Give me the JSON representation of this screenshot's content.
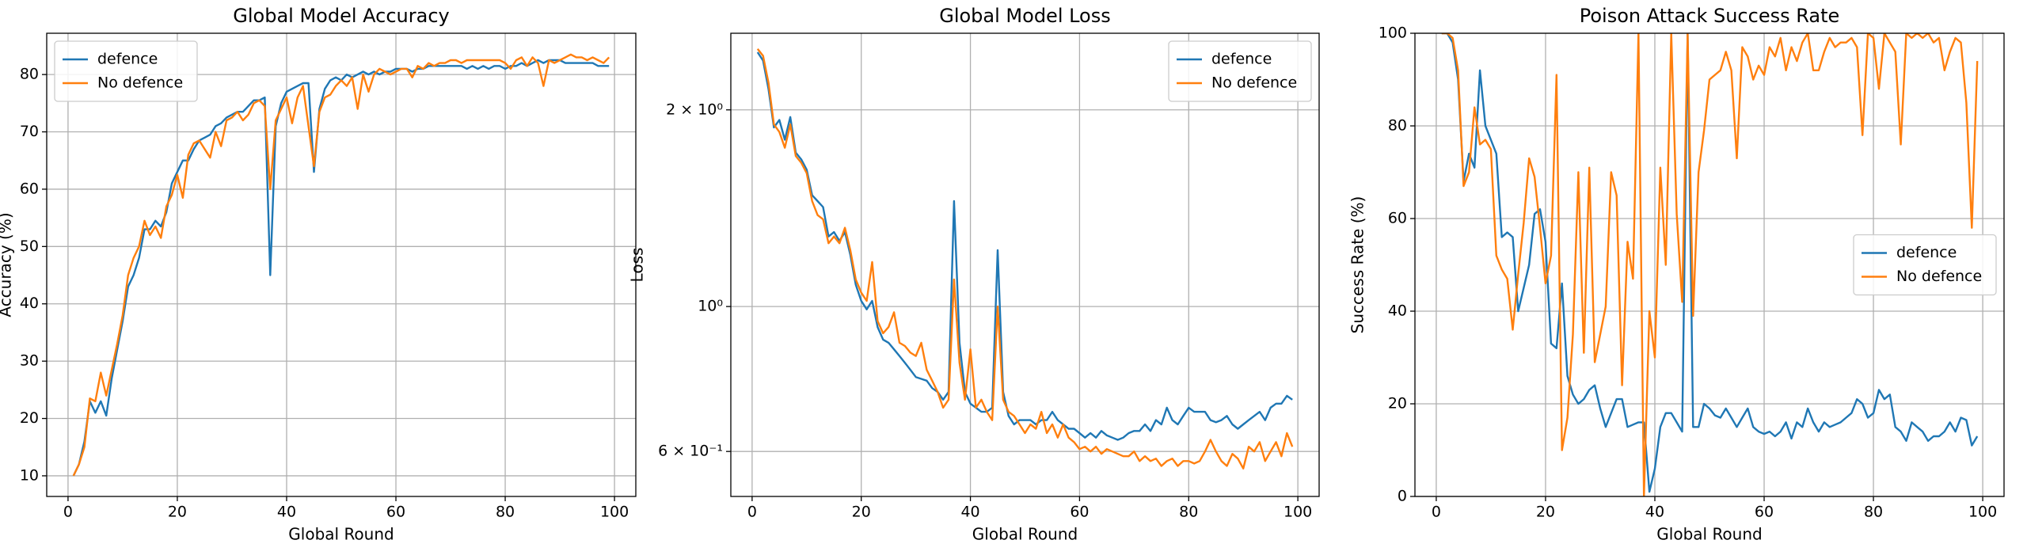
{
  "chart_data": [
    {
      "type": "line",
      "title": "Global Model Accuracy",
      "xlabel": "Global Round",
      "ylabel": "Accuracy (%)",
      "legend": "upper left",
      "grid": true,
      "xlim": [
        -3.9,
        103.9
      ],
      "xticks": [
        0,
        20,
        40,
        60,
        80,
        100
      ],
      "ylim": [
        6.4,
        87.2
      ],
      "yticks": [
        10,
        20,
        30,
        40,
        50,
        60,
        70,
        80
      ],
      "x": [
        1,
        2,
        3,
        4,
        5,
        6,
        7,
        8,
        9,
        10,
        11,
        12,
        13,
        14,
        15,
        16,
        17,
        18,
        19,
        20,
        21,
        22,
        23,
        24,
        25,
        26,
        27,
        28,
        29,
        30,
        31,
        32,
        33,
        34,
        35,
        36,
        37,
        38,
        39,
        40,
        41,
        42,
        43,
        44,
        45,
        46,
        47,
        48,
        49,
        50,
        51,
        52,
        53,
        54,
        55,
        56,
        57,
        58,
        59,
        60,
        61,
        62,
        63,
        64,
        65,
        66,
        67,
        68,
        69,
        70,
        71,
        72,
        73,
        74,
        75,
        76,
        77,
        78,
        79,
        80,
        81,
        82,
        83,
        84,
        85,
        86,
        87,
        88,
        89,
        90,
        91,
        92,
        93,
        94,
        95,
        96,
        97,
        98,
        99
      ],
      "series": [
        {
          "name": "defence",
          "color": "#1f77b4",
          "values": [
            10,
            12,
            16,
            23,
            21,
            23,
            20.5,
            27,
            32,
            37,
            43,
            45,
            48,
            53,
            53,
            54.5,
            53.5,
            56,
            61,
            63,
            65,
            65,
            67,
            68.5,
            69,
            69.5,
            71,
            71.5,
            72.5,
            73,
            73.5,
            73.5,
            74.5,
            75.5,
            75.5,
            76,
            45,
            71,
            75,
            77,
            77.5,
            78,
            78.5,
            78.5,
            63,
            74,
            77.5,
            79,
            79.5,
            79,
            80,
            79.5,
            80,
            80.5,
            80,
            80.5,
            80,
            80.5,
            80.5,
            81,
            81,
            81,
            80.5,
            81,
            81,
            81.5,
            81.5,
            81.5,
            81.5,
            81.5,
            81.5,
            81.5,
            81,
            81.5,
            81,
            81.5,
            81,
            81.5,
            81.5,
            81,
            81.5,
            81.5,
            82,
            81.5,
            82,
            82.5,
            82,
            82.5,
            82.5,
            82.5,
            82,
            82,
            82,
            82,
            82,
            82,
            81.5,
            81.5,
            81.5
          ]
        },
        {
          "name": "No defence",
          "color": "#ff7f0e",
          "values": [
            10,
            12,
            15,
            23.5,
            23,
            28,
            24,
            28.5,
            33,
            38,
            45,
            48,
            50,
            54.5,
            52,
            53.5,
            51.5,
            57,
            59,
            62.5,
            58.5,
            66,
            68,
            68.5,
            67,
            65.5,
            70,
            67.5,
            72,
            72.5,
            73.5,
            72,
            73,
            75,
            75.5,
            74.5,
            60,
            72,
            74,
            76,
            71.5,
            76,
            78,
            71,
            64,
            73.5,
            76,
            76.5,
            78,
            79,
            78,
            79.5,
            74,
            80,
            77,
            80,
            81,
            80.5,
            80,
            80.5,
            81,
            81,
            79.5,
            81.5,
            81,
            82,
            81.5,
            82,
            82,
            82.5,
            82.5,
            82,
            82.5,
            82.5,
            82.5,
            82.5,
            82.5,
            82.5,
            82.5,
            82,
            81,
            82.5,
            83,
            81.5,
            83,
            82,
            78,
            82.5,
            82,
            82.5,
            83,
            83.5,
            83,
            83,
            82.5,
            83,
            82.5,
            82,
            83
          ]
        }
      ]
    },
    {
      "type": "line",
      "title": "Global Model Loss",
      "xlabel": "Global Round",
      "ylabel": "Loss",
      "legend": "upper right",
      "grid": true,
      "yscale": "log",
      "xlim": [
        -3.9,
        103.9
      ],
      "xticks": [
        0,
        20,
        40,
        60,
        80,
        100
      ],
      "ylim": [
        0.512,
        2.62
      ],
      "yticks": [
        {
          "value": 0.6,
          "label": "6 × 10⁻¹"
        },
        {
          "value": 1,
          "label": "10⁰"
        },
        {
          "value": 2,
          "label": "2 × 10⁰"
        }
      ],
      "x": [
        1,
        2,
        3,
        4,
        5,
        6,
        7,
        8,
        9,
        10,
        11,
        12,
        13,
        14,
        15,
        16,
        17,
        18,
        19,
        20,
        21,
        22,
        23,
        24,
        25,
        26,
        27,
        28,
        29,
        30,
        31,
        32,
        33,
        34,
        35,
        36,
        37,
        38,
        39,
        40,
        41,
        42,
        43,
        44,
        45,
        46,
        47,
        48,
        49,
        50,
        51,
        52,
        53,
        54,
        55,
        56,
        57,
        58,
        59,
        60,
        61,
        62,
        63,
        64,
        65,
        66,
        67,
        68,
        69,
        70,
        71,
        72,
        73,
        74,
        75,
        76,
        77,
        78,
        79,
        80,
        81,
        82,
        83,
        84,
        85,
        86,
        87,
        88,
        89,
        90,
        91,
        92,
        93,
        94,
        95,
        96,
        97,
        98,
        99
      ],
      "series": [
        {
          "name": "defence",
          "color": "#1f77b4",
          "values": [
            2.45,
            2.38,
            2.15,
            1.88,
            1.93,
            1.8,
            1.95,
            1.72,
            1.68,
            1.62,
            1.48,
            1.45,
            1.42,
            1.28,
            1.3,
            1.26,
            1.3,
            1.2,
            1.08,
            1.02,
            0.99,
            1.02,
            0.93,
            0.89,
            0.88,
            0.86,
            0.84,
            0.82,
            0.8,
            0.78,
            0.775,
            0.77,
            0.75,
            0.74,
            0.72,
            0.74,
            1.45,
            0.88,
            0.74,
            0.71,
            0.7,
            0.69,
            0.69,
            0.7,
            1.22,
            0.74,
            0.68,
            0.66,
            0.67,
            0.67,
            0.67,
            0.66,
            0.67,
            0.67,
            0.69,
            0.67,
            0.66,
            0.65,
            0.65,
            0.64,
            0.63,
            0.64,
            0.63,
            0.645,
            0.635,
            0.63,
            0.625,
            0.63,
            0.64,
            0.645,
            0.645,
            0.66,
            0.645,
            0.67,
            0.66,
            0.7,
            0.67,
            0.66,
            0.68,
            0.7,
            0.69,
            0.69,
            0.69,
            0.67,
            0.665,
            0.67,
            0.68,
            0.66,
            0.65,
            0.66,
            0.67,
            0.68,
            0.69,
            0.67,
            0.7,
            0.71,
            0.71,
            0.73,
            0.72
          ]
        },
        {
          "name": "No defence",
          "color": "#ff7f0e",
          "values": [
            2.48,
            2.42,
            2.2,
            1.9,
            1.85,
            1.75,
            1.9,
            1.7,
            1.66,
            1.6,
            1.45,
            1.38,
            1.36,
            1.25,
            1.28,
            1.25,
            1.32,
            1.22,
            1.1,
            1.05,
            1.02,
            1.17,
            0.95,
            0.91,
            0.93,
            0.98,
            0.88,
            0.87,
            0.85,
            0.84,
            0.88,
            0.8,
            0.77,
            0.74,
            0.7,
            0.72,
            1.1,
            0.82,
            0.72,
            0.86,
            0.7,
            0.72,
            0.69,
            0.67,
            1.0,
            0.72,
            0.69,
            0.68,
            0.66,
            0.64,
            0.66,
            0.65,
            0.69,
            0.64,
            0.66,
            0.63,
            0.66,
            0.63,
            0.62,
            0.605,
            0.61,
            0.6,
            0.61,
            0.595,
            0.605,
            0.6,
            0.595,
            0.59,
            0.59,
            0.6,
            0.58,
            0.59,
            0.58,
            0.585,
            0.57,
            0.58,
            0.585,
            0.57,
            0.58,
            0.58,
            0.575,
            0.58,
            0.6,
            0.625,
            0.6,
            0.58,
            0.57,
            0.595,
            0.585,
            0.565,
            0.61,
            0.6,
            0.62,
            0.58,
            0.6,
            0.62,
            0.59,
            0.64,
            0.61
          ]
        }
      ]
    },
    {
      "type": "line",
      "title": "Poison Attack Success Rate",
      "xlabel": "Global Round",
      "ylabel": "Success Rate (%)",
      "legend": "center right",
      "grid": true,
      "xlim": [
        -3.9,
        103.9
      ],
      "xticks": [
        0,
        20,
        40,
        60,
        80,
        100
      ],
      "ylim": [
        0,
        100
      ],
      "yticks": [
        0,
        20,
        40,
        60,
        80,
        100
      ],
      "x": [
        1,
        2,
        3,
        4,
        5,
        6,
        7,
        8,
        9,
        10,
        11,
        12,
        13,
        14,
        15,
        16,
        17,
        18,
        19,
        20,
        21,
        22,
        23,
        24,
        25,
        26,
        27,
        28,
        29,
        30,
        31,
        32,
        33,
        34,
        35,
        36,
        37,
        38,
        39,
        40,
        41,
        42,
        43,
        44,
        45,
        46,
        47,
        48,
        49,
        50,
        51,
        52,
        53,
        54,
        55,
        56,
        57,
        58,
        59,
        60,
        61,
        62,
        63,
        64,
        65,
        66,
        67,
        68,
        69,
        70,
        71,
        72,
        73,
        74,
        75,
        76,
        77,
        78,
        79,
        80,
        81,
        82,
        83,
        84,
        85,
        86,
        87,
        88,
        89,
        90,
        91,
        92,
        93,
        94,
        95,
        96,
        97,
        98,
        99
      ],
      "series": [
        {
          "name": "defence",
          "color": "#1f77b4",
          "values": [
            100,
            100,
            98,
            90,
            68,
            74,
            71,
            92,
            80,
            77,
            74,
            56,
            57,
            56,
            40,
            45,
            50,
            61,
            62,
            55,
            33,
            32,
            46,
            26,
            22,
            20,
            21,
            23,
            24,
            19,
            15,
            18,
            21,
            21,
            15,
            15.5,
            16,
            16,
            1,
            6,
            15,
            18,
            18,
            16,
            14,
            100,
            15,
            15,
            20,
            19,
            17.5,
            17,
            19,
            17,
            15,
            17,
            19,
            15,
            14,
            13.5,
            14,
            13,
            14,
            16,
            12.5,
            16,
            15,
            19,
            16,
            14,
            16,
            15,
            15.5,
            16,
            17,
            18,
            21,
            20,
            17,
            18,
            23,
            21,
            22,
            15,
            14,
            12,
            16,
            15,
            14,
            12,
            13,
            13,
            14,
            16,
            14,
            17,
            16.5,
            11,
            13
          ]
        },
        {
          "name": "No defence",
          "color": "#ff7f0e",
          "values": [
            100,
            100,
            99,
            92,
            67,
            70,
            84,
            76,
            77,
            75,
            52,
            49,
            47,
            36,
            48,
            59,
            73,
            69,
            58,
            46,
            52,
            91,
            10,
            17,
            35,
            70,
            31,
            71,
            29,
            35,
            41,
            70,
            65,
            24,
            55,
            47,
            100,
            0,
            40,
            30,
            71,
            50,
            100,
            61,
            42,
            100,
            39,
            70,
            79,
            90,
            91,
            92,
            96,
            92,
            73,
            97,
            95,
            90,
            93,
            91,
            97,
            95,
            99,
            92,
            97,
            94,
            98,
            100,
            92,
            92,
            96,
            99,
            97,
            98,
            98,
            99,
            97,
            78,
            100,
            99,
            88,
            100,
            98,
            96,
            76,
            100,
            99,
            100,
            99,
            100,
            98,
            99,
            92,
            96,
            99,
            98,
            85,
            58,
            94
          ]
        }
      ]
    }
  ]
}
